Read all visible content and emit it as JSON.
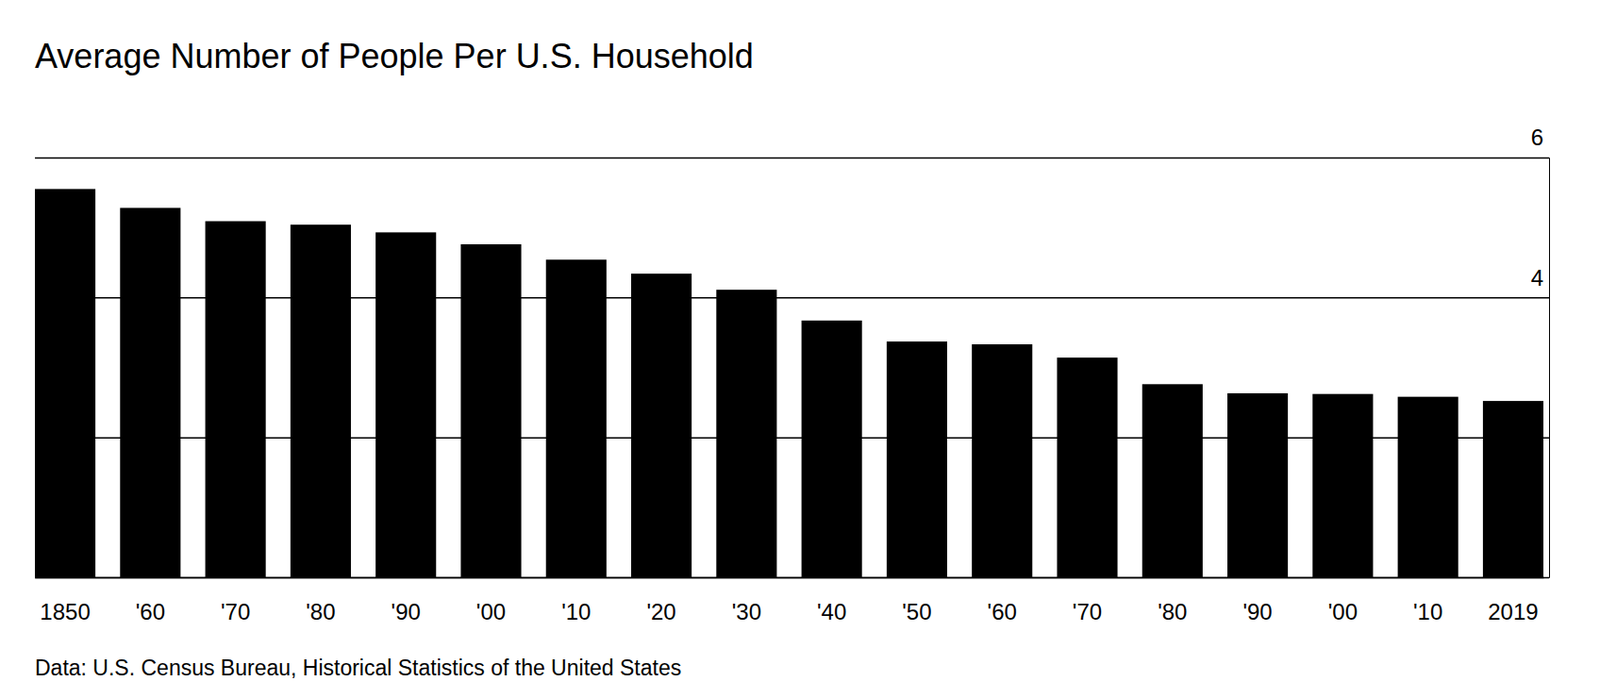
{
  "chart_data": {
    "type": "bar",
    "title": "Average Number of People Per U.S. Household",
    "source": "Data: U.S. Census Bureau, Historical Statistics of the United States",
    "categories": [
      "1850",
      "'60",
      "'70",
      "'80",
      "'90",
      "'00",
      "'10",
      "'20",
      "'30",
      "'40",
      "'50",
      "'60",
      "'70",
      "'80",
      "'90",
      "'00",
      "'10",
      "2019"
    ],
    "values": [
      5.55,
      5.28,
      5.09,
      5.04,
      4.93,
      4.76,
      4.54,
      4.34,
      4.11,
      3.67,
      3.37,
      3.33,
      3.14,
      2.76,
      2.63,
      2.62,
      2.58,
      2.52
    ],
    "color": "#000000",
    "ylim": [
      0,
      6
    ],
    "yticks": [
      0,
      2,
      4,
      6
    ],
    "grid": true
  }
}
